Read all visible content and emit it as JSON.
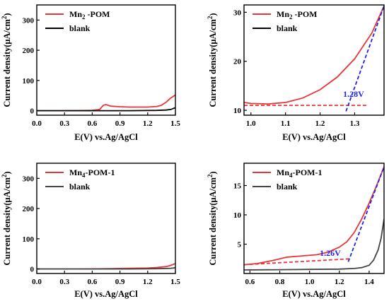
{
  "chart_data": [
    {
      "type": "line",
      "panel": "top-left",
      "xlabel": "E(V) vs.Ag/AgCl",
      "ylabel": "Current density(μA/cm",
      "ylabel_sup": "2",
      "ylabel_close": ")",
      "xlim": [
        0.0,
        1.5
      ],
      "ylim": [
        -15,
        350
      ],
      "xticks": [
        "0.0",
        "0.3",
        "0.6",
        "0.9",
        "1.2",
        "1.5"
      ],
      "yticks": [
        "0",
        "100",
        "200",
        "300"
      ],
      "legend": [
        {
          "text": "Mn",
          "sub": "2",
          "rest": " -POM",
          "color": "#e8353a"
        },
        {
          "text": "blank",
          "sub": "",
          "rest": "",
          "color": "#000000"
        }
      ],
      "series": [
        {
          "name": "Mn2 -POM",
          "color": "#e8353a",
          "x": [
            0.0,
            0.3,
            0.6,
            0.68,
            0.72,
            0.75,
            0.8,
            0.9,
            1.0,
            1.1,
            1.2,
            1.3,
            1.35,
            1.4,
            1.45,
            1.5
          ],
          "y": [
            0,
            0,
            1,
            4,
            18,
            20,
            15,
            13,
            12,
            12,
            12,
            14,
            18,
            28,
            42,
            52
          ]
        },
        {
          "name": "blank",
          "color": "#000000",
          "x": [
            0.0,
            0.5,
            1.0,
            1.3,
            1.4,
            1.45,
            1.5
          ],
          "y": [
            0,
            0,
            0,
            1,
            2,
            4,
            10
          ]
        }
      ]
    },
    {
      "type": "line",
      "panel": "top-right",
      "xlabel": "E(V) vs.Ag/AgCl",
      "ylabel": "Current density(μA/cm",
      "ylabel_sup": "2",
      "ylabel_close": ")",
      "xlim": [
        0.98,
        1.385
      ],
      "ylim": [
        9,
        31.5
      ],
      "xticks": [
        "1.0",
        "1.1",
        "1.2",
        "1.3"
      ],
      "yticks": [
        "10",
        "20",
        "30"
      ],
      "legend": [
        {
          "text": "Mn",
          "sub": "2",
          "rest": " -POM",
          "color": "#e8353a"
        },
        {
          "text": "blank",
          "sub": "",
          "rest": "",
          "color": "#000000"
        }
      ],
      "annotation": "1.28V",
      "series": [
        {
          "name": "Mn2 -POM",
          "color": "#e8353a",
          "x": [
            0.98,
            1.0,
            1.05,
            1.1,
            1.15,
            1.2,
            1.25,
            1.3,
            1.35,
            1.385
          ],
          "y": [
            11.6,
            11.4,
            11.3,
            11.6,
            12.5,
            14.2,
            16.8,
            20.5,
            25.8,
            31.3
          ]
        }
      ],
      "fits": [
        {
          "color": "#e8353a",
          "x": [
            0.98,
            1.34
          ],
          "y": [
            11.0,
            11.0
          ]
        },
        {
          "color": "#1e24e6",
          "x": [
            1.275,
            1.385
          ],
          "y": [
            9.8,
            31.3
          ]
        }
      ]
    },
    {
      "type": "line",
      "panel": "bottom-left",
      "xlabel": "E(V) vs.Ag/AgCl",
      "ylabel": "Current density(μA/cm",
      "ylabel_sup": "2",
      "ylabel_close": ")",
      "xlim": [
        0.0,
        1.5
      ],
      "ylim": [
        -15,
        350
      ],
      "xticks": [
        "0.0",
        "0.3",
        "0.6",
        "0.9",
        "1.2",
        "1.5"
      ],
      "yticks": [
        "0",
        "100",
        "200",
        "300"
      ],
      "legend": [
        {
          "text": "Mn",
          "sub": "4",
          "rest": "-POM-1",
          "color": "#e8353a"
        },
        {
          "text": "blank",
          "sub": "",
          "rest": "",
          "color": "#444444"
        }
      ],
      "series": [
        {
          "name": "Mn4-POM-1",
          "color": "#e8353a",
          "x": [
            0.0,
            0.5,
            0.8,
            1.0,
            1.2,
            1.3,
            1.4,
            1.45,
            1.5
          ],
          "y": [
            0,
            0,
            1,
            2,
            3,
            5,
            8,
            12,
            18
          ]
        },
        {
          "name": "blank",
          "color": "#444444",
          "x": [
            0.0,
            0.5,
            1.0,
            1.3,
            1.45,
            1.5
          ],
          "y": [
            0,
            0,
            0,
            1,
            2,
            4
          ]
        }
      ]
    },
    {
      "type": "line",
      "panel": "bottom-right",
      "xlabel": "E(V) vs.Ag/AgCl",
      "ylabel": "Current density(μA/cm",
      "ylabel_sup": "2",
      "ylabel_close": ")",
      "xlim": [
        0.56,
        1.5
      ],
      "ylim": [
        0,
        18.8
      ],
      "xticks": [
        "0.6",
        "0.8",
        "1.0",
        "1.2",
        "1.4"
      ],
      "yticks": [
        "5",
        "10",
        "15"
      ],
      "legend": [
        {
          "text": "Mn",
          "sub": "4",
          "rest": "-POM-1",
          "color": "#e8353a"
        },
        {
          "text": "blank",
          "sub": "",
          "rest": "",
          "color": "#444444"
        }
      ],
      "annotation": "1.26V",
      "series": [
        {
          "name": "Mn4-POM-1",
          "color": "#e8353a",
          "x": [
            0.56,
            0.65,
            0.75,
            0.85,
            0.95,
            1.05,
            1.12,
            1.2,
            1.25,
            1.3,
            1.35,
            1.4,
            1.45,
            1.5
          ],
          "y": [
            1.5,
            1.7,
            2.2,
            2.8,
            3.0,
            3.2,
            3.6,
            4.5,
            5.4,
            7.0,
            9.3,
            12.0,
            15.0,
            18.2
          ]
        },
        {
          "name": "blank",
          "color": "#444444",
          "x": [
            0.56,
            0.8,
            1.0,
            1.2,
            1.3,
            1.35,
            1.4,
            1.43,
            1.46,
            1.48,
            1.5
          ],
          "y": [
            0.6,
            0.65,
            0.7,
            0.75,
            0.85,
            1.0,
            1.4,
            2.3,
            4.0,
            6.0,
            9.3
          ]
        }
      ],
      "fits": [
        {
          "color": "#e8353a",
          "x": [
            0.56,
            1.27
          ],
          "y": [
            1.5,
            2.5
          ]
        },
        {
          "color": "#1e24e6",
          "x": [
            1.26,
            1.5
          ],
          "y": [
            2.0,
            18.2
          ]
        }
      ]
    }
  ]
}
